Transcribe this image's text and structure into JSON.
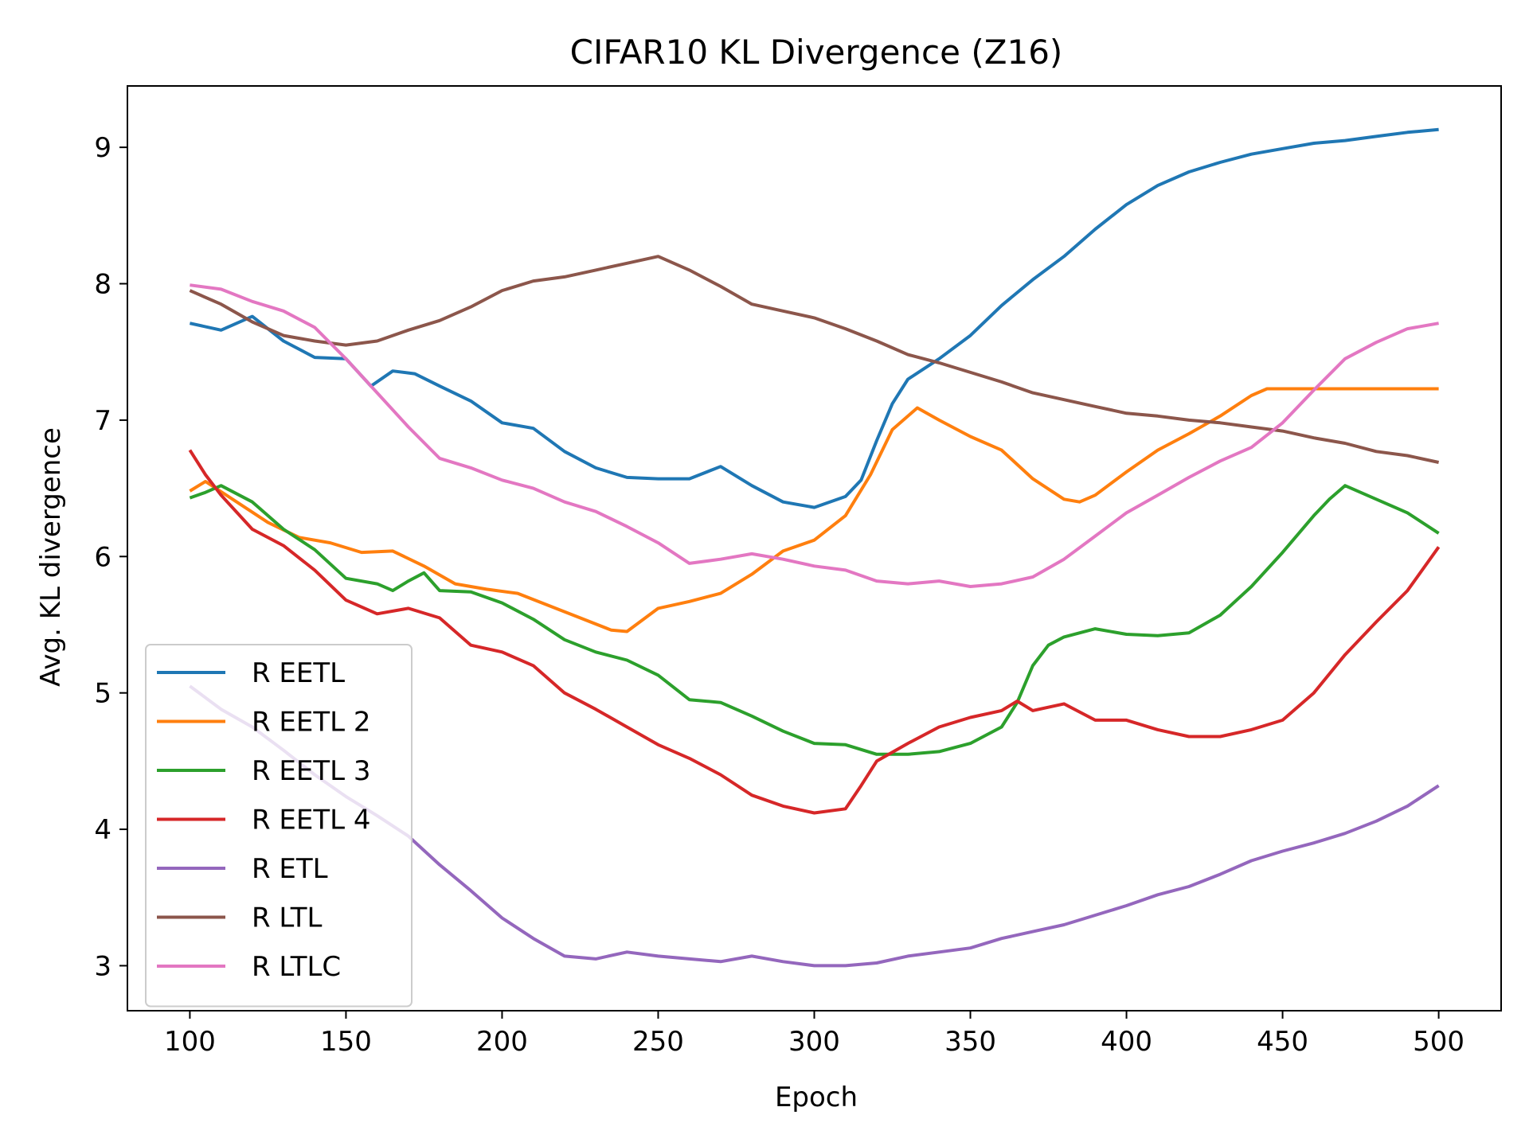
{
  "chart_data": {
    "type": "line",
    "title": "CIFAR10 KL Divergence (Z16)",
    "xlabel": "Epoch",
    "ylabel": "Avg. KL divergence",
    "xlim": [
      80,
      520
    ],
    "ylim": [
      2.67,
      9.45
    ],
    "xticks": [
      100,
      150,
      200,
      250,
      300,
      350,
      400,
      450,
      500
    ],
    "yticks": [
      3,
      4,
      5,
      6,
      7,
      8,
      9
    ],
    "grid": false,
    "legend_position": "lower-left",
    "series": [
      {
        "name": "R EETL",
        "color": "#1f77b4",
        "points": [
          [
            100,
            7.71
          ],
          [
            110,
            7.66
          ],
          [
            120,
            7.76
          ],
          [
            130,
            7.58
          ],
          [
            140,
            7.46
          ],
          [
            150,
            7.45
          ],
          [
            158,
            7.25
          ],
          [
            165,
            7.36
          ],
          [
            172,
            7.34
          ],
          [
            180,
            7.25
          ],
          [
            190,
            7.14
          ],
          [
            200,
            6.98
          ],
          [
            210,
            6.94
          ],
          [
            220,
            6.77
          ],
          [
            230,
            6.65
          ],
          [
            240,
            6.58
          ],
          [
            250,
            6.57
          ],
          [
            260,
            6.57
          ],
          [
            270,
            6.66
          ],
          [
            280,
            6.52
          ],
          [
            290,
            6.4
          ],
          [
            300,
            6.36
          ],
          [
            310,
            6.44
          ],
          [
            315,
            6.56
          ],
          [
            320,
            6.85
          ],
          [
            325,
            7.12
          ],
          [
            330,
            7.3
          ],
          [
            340,
            7.45
          ],
          [
            350,
            7.62
          ],
          [
            360,
            7.84
          ],
          [
            370,
            8.03
          ],
          [
            380,
            8.2
          ],
          [
            390,
            8.4
          ],
          [
            400,
            8.58
          ],
          [
            410,
            8.72
          ],
          [
            420,
            8.82
          ],
          [
            430,
            8.89
          ],
          [
            440,
            8.95
          ],
          [
            450,
            8.99
          ],
          [
            460,
            9.03
          ],
          [
            470,
            9.05
          ],
          [
            480,
            9.08
          ],
          [
            490,
            9.11
          ],
          [
            500,
            9.13
          ]
        ]
      },
      {
        "name": "R EETL 2",
        "color": "#ff7f0e",
        "points": [
          [
            100,
            6.48
          ],
          [
            105,
            6.55
          ],
          [
            115,
            6.4
          ],
          [
            125,
            6.25
          ],
          [
            135,
            6.14
          ],
          [
            145,
            6.1
          ],
          [
            155,
            6.03
          ],
          [
            165,
            6.04
          ],
          [
            175,
            5.93
          ],
          [
            185,
            5.8
          ],
          [
            195,
            5.76
          ],
          [
            205,
            5.73
          ],
          [
            215,
            5.64
          ],
          [
            225,
            5.55
          ],
          [
            235,
            5.46
          ],
          [
            240,
            5.45
          ],
          [
            250,
            5.62
          ],
          [
            260,
            5.67
          ],
          [
            270,
            5.73
          ],
          [
            280,
            5.87
          ],
          [
            290,
            6.04
          ],
          [
            300,
            6.12
          ],
          [
            310,
            6.3
          ],
          [
            318,
            6.6
          ],
          [
            325,
            6.93
          ],
          [
            333,
            7.09
          ],
          [
            340,
            7.0
          ],
          [
            350,
            6.88
          ],
          [
            360,
            6.78
          ],
          [
            370,
            6.57
          ],
          [
            380,
            6.42
          ],
          [
            385,
            6.4
          ],
          [
            390,
            6.45
          ],
          [
            400,
            6.62
          ],
          [
            410,
            6.78
          ],
          [
            420,
            6.9
          ],
          [
            430,
            7.03
          ],
          [
            440,
            7.18
          ],
          [
            445,
            7.23
          ],
          [
            460,
            7.23
          ],
          [
            480,
            7.23
          ],
          [
            500,
            7.23
          ]
        ]
      },
      {
        "name": "R EETL 3",
        "color": "#2ca02c",
        "points": [
          [
            100,
            6.43
          ],
          [
            105,
            6.47
          ],
          [
            110,
            6.52
          ],
          [
            120,
            6.4
          ],
          [
            130,
            6.2
          ],
          [
            140,
            6.05
          ],
          [
            150,
            5.84
          ],
          [
            160,
            5.8
          ],
          [
            165,
            5.75
          ],
          [
            170,
            5.82
          ],
          [
            175,
            5.88
          ],
          [
            180,
            5.75
          ],
          [
            190,
            5.74
          ],
          [
            200,
            5.66
          ],
          [
            210,
            5.54
          ],
          [
            220,
            5.39
          ],
          [
            230,
            5.3
          ],
          [
            240,
            5.24
          ],
          [
            250,
            5.13
          ],
          [
            260,
            4.95
          ],
          [
            270,
            4.93
          ],
          [
            280,
            4.83
          ],
          [
            290,
            4.72
          ],
          [
            300,
            4.63
          ],
          [
            310,
            4.62
          ],
          [
            320,
            4.55
          ],
          [
            330,
            4.55
          ],
          [
            340,
            4.57
          ],
          [
            350,
            4.63
          ],
          [
            360,
            4.75
          ],
          [
            365,
            4.93
          ],
          [
            370,
            5.2
          ],
          [
            375,
            5.35
          ],
          [
            380,
            5.41
          ],
          [
            390,
            5.47
          ],
          [
            400,
            5.43
          ],
          [
            410,
            5.42
          ],
          [
            420,
            5.44
          ],
          [
            430,
            5.57
          ],
          [
            440,
            5.78
          ],
          [
            450,
            6.03
          ],
          [
            460,
            6.3
          ],
          [
            465,
            6.42
          ],
          [
            470,
            6.52
          ],
          [
            480,
            6.42
          ],
          [
            490,
            6.32
          ],
          [
            500,
            6.17
          ]
        ]
      },
      {
        "name": "R EETL 4",
        "color": "#d62728",
        "points": [
          [
            100,
            6.78
          ],
          [
            105,
            6.6
          ],
          [
            110,
            6.45
          ],
          [
            120,
            6.2
          ],
          [
            130,
            6.08
          ],
          [
            140,
            5.9
          ],
          [
            150,
            5.68
          ],
          [
            160,
            5.58
          ],
          [
            170,
            5.62
          ],
          [
            180,
            5.55
          ],
          [
            190,
            5.35
          ],
          [
            200,
            5.3
          ],
          [
            210,
            5.2
          ],
          [
            220,
            5.0
          ],
          [
            230,
            4.88
          ],
          [
            240,
            4.75
          ],
          [
            250,
            4.62
          ],
          [
            260,
            4.52
          ],
          [
            270,
            4.4
          ],
          [
            280,
            4.25
          ],
          [
            290,
            4.17
          ],
          [
            300,
            4.12
          ],
          [
            310,
            4.15
          ],
          [
            315,
            4.32
          ],
          [
            320,
            4.5
          ],
          [
            330,
            4.63
          ],
          [
            340,
            4.75
          ],
          [
            350,
            4.82
          ],
          [
            360,
            4.87
          ],
          [
            365,
            4.94
          ],
          [
            370,
            4.87
          ],
          [
            380,
            4.92
          ],
          [
            390,
            4.8
          ],
          [
            400,
            4.8
          ],
          [
            410,
            4.73
          ],
          [
            420,
            4.68
          ],
          [
            430,
            4.68
          ],
          [
            440,
            4.73
          ],
          [
            450,
            4.8
          ],
          [
            460,
            5.0
          ],
          [
            470,
            5.28
          ],
          [
            480,
            5.52
          ],
          [
            490,
            5.75
          ],
          [
            500,
            6.07
          ]
        ]
      },
      {
        "name": "R ETL",
        "color": "#9467bd",
        "points": [
          [
            100,
            5.05
          ],
          [
            110,
            4.88
          ],
          [
            120,
            4.75
          ],
          [
            130,
            4.58
          ],
          [
            140,
            4.4
          ],
          [
            150,
            4.24
          ],
          [
            160,
            4.1
          ],
          [
            170,
            3.95
          ],
          [
            180,
            3.74
          ],
          [
            190,
            3.55
          ],
          [
            200,
            3.35
          ],
          [
            210,
            3.2
          ],
          [
            220,
            3.07
          ],
          [
            230,
            3.05
          ],
          [
            240,
            3.1
          ],
          [
            250,
            3.07
          ],
          [
            260,
            3.05
          ],
          [
            270,
            3.03
          ],
          [
            280,
            3.07
          ],
          [
            290,
            3.03
          ],
          [
            300,
            3.0
          ],
          [
            310,
            3.0
          ],
          [
            320,
            3.02
          ],
          [
            330,
            3.07
          ],
          [
            340,
            3.1
          ],
          [
            350,
            3.13
          ],
          [
            360,
            3.2
          ],
          [
            370,
            3.25
          ],
          [
            380,
            3.3
          ],
          [
            390,
            3.37
          ],
          [
            400,
            3.44
          ],
          [
            410,
            3.52
          ],
          [
            420,
            3.58
          ],
          [
            430,
            3.67
          ],
          [
            440,
            3.77
          ],
          [
            450,
            3.84
          ],
          [
            460,
            3.9
          ],
          [
            470,
            3.97
          ],
          [
            480,
            4.06
          ],
          [
            490,
            4.17
          ],
          [
            500,
            4.32
          ]
        ]
      },
      {
        "name": "R LTL",
        "color": "#8c564b",
        "points": [
          [
            100,
            7.95
          ],
          [
            110,
            7.85
          ],
          [
            120,
            7.72
          ],
          [
            130,
            7.62
          ],
          [
            140,
            7.58
          ],
          [
            150,
            7.55
          ],
          [
            160,
            7.58
          ],
          [
            170,
            7.66
          ],
          [
            180,
            7.73
          ],
          [
            190,
            7.83
          ],
          [
            200,
            7.95
          ],
          [
            210,
            8.02
          ],
          [
            220,
            8.05
          ],
          [
            230,
            8.1
          ],
          [
            240,
            8.15
          ],
          [
            250,
            8.2
          ],
          [
            260,
            8.1
          ],
          [
            270,
            7.98
          ],
          [
            280,
            7.85
          ],
          [
            290,
            7.8
          ],
          [
            300,
            7.75
          ],
          [
            310,
            7.67
          ],
          [
            320,
            7.58
          ],
          [
            330,
            7.48
          ],
          [
            340,
            7.42
          ],
          [
            350,
            7.35
          ],
          [
            360,
            7.28
          ],
          [
            370,
            7.2
          ],
          [
            380,
            7.15
          ],
          [
            390,
            7.1
          ],
          [
            400,
            7.05
          ],
          [
            410,
            7.03
          ],
          [
            420,
            7.0
          ],
          [
            430,
            6.98
          ],
          [
            440,
            6.95
          ],
          [
            450,
            6.92
          ],
          [
            460,
            6.87
          ],
          [
            470,
            6.83
          ],
          [
            480,
            6.77
          ],
          [
            490,
            6.74
          ],
          [
            500,
            6.69
          ]
        ]
      },
      {
        "name": "R LTLC",
        "color": "#e377c2",
        "points": [
          [
            100,
            7.99
          ],
          [
            110,
            7.96
          ],
          [
            120,
            7.87
          ],
          [
            130,
            7.8
          ],
          [
            140,
            7.68
          ],
          [
            150,
            7.45
          ],
          [
            160,
            7.2
          ],
          [
            170,
            6.95
          ],
          [
            180,
            6.72
          ],
          [
            190,
            6.65
          ],
          [
            200,
            6.56
          ],
          [
            210,
            6.5
          ],
          [
            220,
            6.4
          ],
          [
            230,
            6.33
          ],
          [
            240,
            6.22
          ],
          [
            250,
            6.1
          ],
          [
            260,
            5.95
          ],
          [
            270,
            5.98
          ],
          [
            280,
            6.02
          ],
          [
            290,
            5.98
          ],
          [
            300,
            5.93
          ],
          [
            310,
            5.9
          ],
          [
            320,
            5.82
          ],
          [
            330,
            5.8
          ],
          [
            340,
            5.82
          ],
          [
            350,
            5.78
          ],
          [
            360,
            5.8
          ],
          [
            370,
            5.85
          ],
          [
            380,
            5.98
          ],
          [
            390,
            6.15
          ],
          [
            400,
            6.32
          ],
          [
            410,
            6.45
          ],
          [
            420,
            6.58
          ],
          [
            430,
            6.7
          ],
          [
            440,
            6.8
          ],
          [
            450,
            6.98
          ],
          [
            460,
            7.22
          ],
          [
            470,
            7.45
          ],
          [
            480,
            7.57
          ],
          [
            490,
            7.67
          ],
          [
            500,
            7.71
          ]
        ]
      }
    ]
  }
}
